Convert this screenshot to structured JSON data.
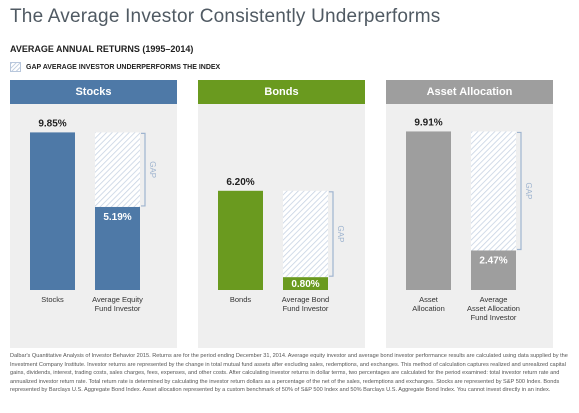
{
  "title": "The Average Investor Consistently Underperforms",
  "subtitle": "AVERAGE ANNUAL RETURNS (1995–2014)",
  "legend": {
    "label": "GAP AVERAGE INVESTOR UNDERPERFORMS THE INDEX"
  },
  "gap_label": "GAP",
  "colors": {
    "stocks": "#4e79a7",
    "bonds": "#6a9a1f",
    "asset_allocation": "#9e9e9e",
    "panel_bg": "#efefef",
    "gap_hatch": "#c7d3e3",
    "bracket": "#9fb4cf"
  },
  "chart_data": [
    {
      "type": "bar",
      "panel_title": "Stocks",
      "color_key": "stocks",
      "categories": [
        "Stocks",
        "Average Equity\nFund Investor"
      ],
      "values": [
        9.85,
        5.19
      ],
      "value_labels": [
        "9.85%",
        "5.19%"
      ],
      "ylim": [
        0,
        11
      ]
    },
    {
      "type": "bar",
      "panel_title": "Bonds",
      "color_key": "bonds",
      "categories": [
        "Bonds",
        "Average Bond\nFund Investor"
      ],
      "values": [
        6.2,
        0.8
      ],
      "value_labels": [
        "6.20%",
        "0.80%"
      ],
      "ylim": [
        0,
        11
      ]
    },
    {
      "type": "bar",
      "panel_title": "Asset Allocation",
      "color_key": "asset_allocation",
      "categories": [
        "Asset\nAllocation",
        "Average\nAsset Allocation\nFund Investor"
      ],
      "values": [
        9.91,
        2.47
      ],
      "value_labels": [
        "9.91%",
        "2.47%"
      ],
      "ylim": [
        0,
        11
      ]
    }
  ],
  "footnote": "Dalbar's Quantitative Analysis of Investor Behavior 2015. Returns are for the period ending December 31, 2014. Average equity investor and average bond investor performance results are calculated using data supplied by the Investment Company Institute. Investor returns are represented by the change in total mutual fund assets after excluding sales, redemptions, and exchanges. This method of calculation captures realized and unrealized capital gains, dividends, interest, trading costs, sales charges, fees, expenses, and other costs. After calculating investor returns in dollar terms, two percentages are calculated for the period examined: total investor return rate and annualized investor return rate. Total return rate is determined by calculating the investor return dollars as a percentage of the net of the sales, redemptions and exchanges. Stocks are represented by S&P 500 Index. Bonds represented by Barclays U.S. Aggregate Bond Index. Asset allocation represented by a custom benchmark of 50% of S&P 500 Index and 50% Barclays U.S. Aggregate Bond Index. You cannot invest directly in an index."
}
